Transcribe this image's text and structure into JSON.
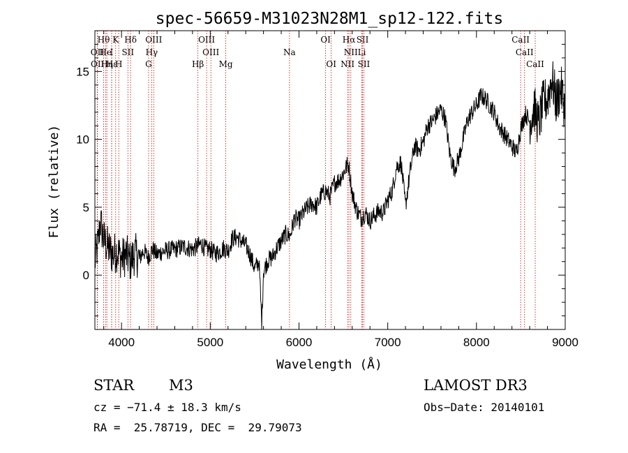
{
  "chart_data": {
    "type": "line",
    "title": "spec-56659-M31023N28M1_sp12-122.fits",
    "xlabel": "Wavelength (Å)",
    "ylabel": "Flux (relative)",
    "xlim": [
      3700,
      9000
    ],
    "ylim": [
      -4,
      18
    ],
    "x_ticks": [
      "4000",
      "5000",
      "6000",
      "7000",
      "8000",
      "9000"
    ],
    "x_tick_values": [
      4000,
      5000,
      6000,
      7000,
      8000,
      9000
    ],
    "y_ticks": [
      "0",
      "5",
      "10",
      "15"
    ],
    "y_tick_values": [
      0,
      5,
      10,
      15
    ],
    "series": [
      {
        "name": "spectrum",
        "x": [
          3700,
          3740,
          3760,
          3800,
          3850,
          3900,
          3950,
          4000,
          4050,
          4100,
          4150,
          4200,
          4250,
          4300,
          4350,
          4400,
          4450,
          4500,
          4600,
          4700,
          4800,
          4850,
          4900,
          4950,
          5000,
          5050,
          5100,
          5150,
          5200,
          5250,
          5300,
          5350,
          5400,
          5450,
          5500,
          5550,
          5580,
          5600,
          5650,
          5700,
          5750,
          5800,
          5850,
          5900,
          5950,
          6000,
          6050,
          6100,
          6150,
          6200,
          6250,
          6300,
          6350,
          6400,
          6450,
          6500,
          6550,
          6563,
          6600,
          6650,
          6700,
          6750,
          6800,
          6850,
          6900,
          6950,
          7000,
          7050,
          7100,
          7150,
          7200,
          7250,
          7300,
          7350,
          7400,
          7450,
          7500,
          7550,
          7600,
          7650,
          7700,
          7750,
          7800,
          7850,
          7900,
          7950,
          8000,
          8050,
          8100,
          8150,
          8200,
          8250,
          8300,
          8350,
          8400,
          8450,
          8500,
          8550,
          8600,
          8650,
          8700,
          8750,
          8800,
          8850,
          8900,
          8950,
          9000
        ],
        "y": [
          1.0,
          2.5,
          4.0,
          2.6,
          2.0,
          1.5,
          1.8,
          1.2,
          1.5,
          1.0,
          1.6,
          1.2,
          1.8,
          1.3,
          1.9,
          1.5,
          1.7,
          1.8,
          1.9,
          2.1,
          1.9,
          2.1,
          2.3,
          1.9,
          1.9,
          1.6,
          1.7,
          2.0,
          1.8,
          2.7,
          2.8,
          2.5,
          2.2,
          1.5,
          0.5,
          1.0,
          -3.5,
          0.3,
          1.1,
          1.3,
          2.0,
          2.5,
          3.0,
          2.9,
          4.2,
          4.0,
          4.6,
          5.0,
          5.3,
          5.0,
          5.9,
          6.2,
          5.8,
          6.8,
          7.0,
          7.5,
          8.2,
          8.0,
          6.0,
          4.8,
          4.2,
          4.6,
          4.0,
          4.4,
          4.7,
          4.6,
          5.5,
          6.2,
          8.0,
          8.3,
          5.1,
          7.5,
          9.5,
          9.2,
          9.8,
          11.0,
          11.3,
          11.8,
          12.2,
          11.5,
          8.9,
          7.8,
          8.6,
          10.0,
          11.4,
          12.0,
          12.5,
          13.2,
          13.0,
          12.5,
          12.0,
          11.0,
          10.5,
          10.0,
          9.5,
          9.0,
          10.8,
          11.9,
          11.3,
          12.3,
          11.1,
          12.6,
          13.0,
          14.5,
          12.7,
          13.8,
          12.2
        ]
      }
    ],
    "lines": [
      {
        "label": "Hθ",
        "w": 3798,
        "row": 0
      },
      {
        "label": "K",
        "w": 3934,
        "row": 0
      },
      {
        "label": "Hδ",
        "w": 4102,
        "row": 0
      },
      {
        "label": "OIII",
        "w": 4363,
        "row": 0
      },
      {
        "label": "OIII",
        "w": 4959,
        "row": 0
      },
      {
        "label": "OI",
        "w": 6300,
        "row": 0
      },
      {
        "label": "Hα",
        "w": 6563,
        "row": 0
      },
      {
        "label": "SII",
        "w": 6716,
        "row": 0
      },
      {
        "label": "CaII",
        "w": 8498,
        "row": 0
      },
      {
        "label": "OII",
        "w": 3727,
        "row": 1
      },
      {
        "label": "He",
        "w": 3820,
        "row": 1
      },
      {
        "label": "I",
        "w": 3889,
        "row": 1
      },
      {
        "label": "SII",
        "w": 4072,
        "row": 1
      },
      {
        "label": "Hγ",
        "w": 4340,
        "row": 1
      },
      {
        "label": "OIII",
        "w": 5007,
        "row": 1
      },
      {
        "label": "Na",
        "w": 5893,
        "row": 1
      },
      {
        "label": "NII",
        "w": 6584,
        "row": 1
      },
      {
        "label": "Li",
        "w": 6708,
        "row": 1
      },
      {
        "label": "CaII",
        "w": 8542,
        "row": 1
      },
      {
        "label": "OII",
        "w": 3729,
        "row": 2
      },
      {
        "label": "Hε",
        "w": 3889,
        "row": 2
      },
      {
        "label": "Hη",
        "w": 3835,
        "row": 2
      },
      {
        "label": "H",
        "w": 3969,
        "row": 2
      },
      {
        "label": "G",
        "w": 4305,
        "row": 2
      },
      {
        "label": "Hβ",
        "w": 4861,
        "row": 2
      },
      {
        "label": "Mg",
        "w": 5175,
        "row": 2
      },
      {
        "label": "OI",
        "w": 6363,
        "row": 2
      },
      {
        "label": "NII",
        "w": 6548,
        "row": 2
      },
      {
        "label": "SII",
        "w": 6731,
        "row": 2
      },
      {
        "label": "CaII",
        "w": 8662,
        "row": 2
      }
    ],
    "line_color": "#cc0000"
  },
  "info": {
    "object_class": "STAR",
    "subclass": "M3",
    "survey": "LAMOST DR3",
    "cz": "cz = −71.4 ± 18.3 km/s",
    "obs_date": "Obs−Date: 20140101",
    "coords": "RA =  25.78719, DEC =  29.79073"
  }
}
